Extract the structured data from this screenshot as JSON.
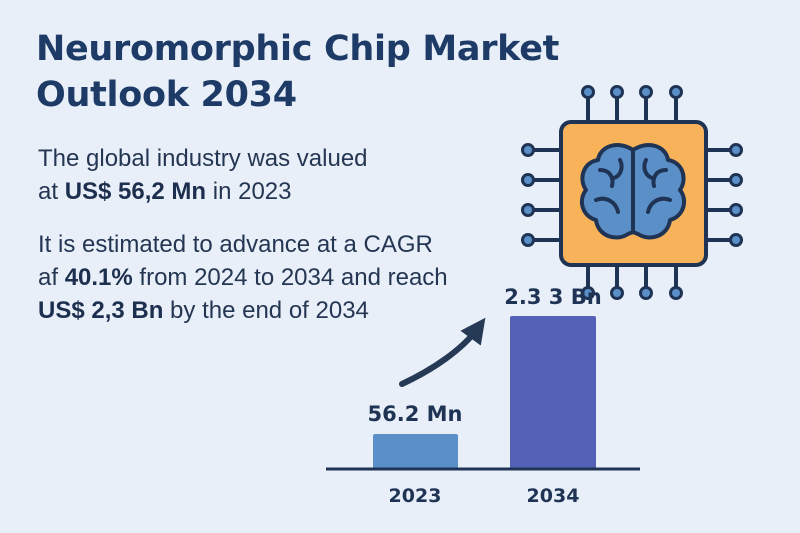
{
  "title": {
    "line1": "Neuromorphic Chip Market",
    "line2": "Outlook 2034"
  },
  "para1": {
    "line1": "The global industry was valued",
    "line2_pre": "at ",
    "line2_bold": "US$ 56,2 Mn",
    "line2_post": " in 2023"
  },
  "para2": {
    "line1": "It is estimated to advance at a CAGR",
    "line2_pre": "af ",
    "line2_bold": "40.1%",
    "line2_post": " from 2024 to 2034 and reach",
    "line3_bold": "US$ 2,3 Bn",
    "line3_post": " by the end of 2034"
  },
  "icon": {
    "name": "neuromorphic-chip-brain-icon",
    "chip_color": "#f7b25a",
    "brain_color": "#5b8fc7",
    "outline_color": "#1f3355"
  },
  "colors": {
    "bar_2023": "#5b8fc7",
    "bar_2034": "#5561b6",
    "arrow": "#263a56",
    "baseline": "#1f3355"
  },
  "chart_data": {
    "type": "bar",
    "categories": [
      "2023",
      "2034"
    ],
    "values_usd_mn": [
      56.2,
      2300
    ],
    "data_labels": [
      "56.2 Mn",
      "2.3 3 Bn"
    ],
    "title": "",
    "xlabel": "",
    "ylabel": "",
    "note": "bar heights are not drawn to scale"
  }
}
